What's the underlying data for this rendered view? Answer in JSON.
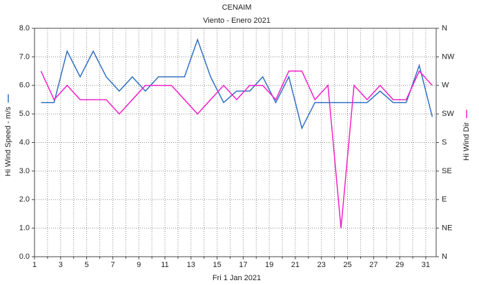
{
  "chart_data": {
    "type": "line",
    "title": "CENAIM",
    "subtitle": "Viento - Enero 2021",
    "xlabel": "Fri 1 Jan 2021",
    "x": [
      1.5,
      2.5,
      3.5,
      4.5,
      5.5,
      6.5,
      7.5,
      8.5,
      9.5,
      10.5,
      11.5,
      12.5,
      13.5,
      14.5,
      15.5,
      16.5,
      17.5,
      18.5,
      19.5,
      20.5,
      21.5,
      22.5,
      23.5,
      24.5,
      25.5,
      26.5,
      27.5,
      28.5,
      29.5,
      30.5,
      31.5
    ],
    "xlim": [
      1,
      31.8
    ],
    "xticks": [
      1,
      3,
      5,
      7,
      9,
      11,
      13,
      15,
      17,
      19,
      21,
      23,
      25,
      27,
      29,
      31
    ],
    "xminor_ticks": [
      2,
      4,
      6,
      8,
      10,
      12,
      14,
      16,
      18,
      20,
      22,
      24,
      26,
      28,
      30
    ],
    "ylim": [
      0,
      8
    ],
    "yticks": [
      {
        "value": 0,
        "label": "0.0"
      },
      {
        "value": 1,
        "label": "1.0"
      },
      {
        "value": 2,
        "label": "2.0"
      },
      {
        "value": 3,
        "label": "3.0"
      },
      {
        "value": 4,
        "label": "4.0"
      },
      {
        "value": 5,
        "label": "5.0"
      },
      {
        "value": 6,
        "label": "6.0"
      },
      {
        "value": 7,
        "label": "7.0"
      },
      {
        "value": 8,
        "label": "8.0"
      }
    ],
    "y2lim": [
      0,
      360
    ],
    "y2ticks": [
      {
        "value": 0,
        "label": "N"
      },
      {
        "value": 45,
        "label": "NE"
      },
      {
        "value": 90,
        "label": "E"
      },
      {
        "value": 135,
        "label": "SE"
      },
      {
        "value": 180,
        "label": "S"
      },
      {
        "value": 225,
        "label": "SW"
      },
      {
        "value": 270,
        "label": "W"
      },
      {
        "value": 315,
        "label": "NW"
      },
      {
        "value": 360,
        "label": "N"
      }
    ],
    "grid": true,
    "series": [
      {
        "name": "Hi Wind Speed - m/s",
        "color": "#2e6fc2",
        "axis": "y",
        "values": [
          5.4,
          5.4,
          7.2,
          6.3,
          7.2,
          6.3,
          5.8,
          6.3,
          5.8,
          6.3,
          6.3,
          6.3,
          7.6,
          6.3,
          5.4,
          5.8,
          5.8,
          6.3,
          5.4,
          6.3,
          4.5,
          5.4,
          5.4,
          5.4,
          5.4,
          5.4,
          5.8,
          5.4,
          5.4,
          6.7,
          4.9
        ]
      },
      {
        "name": "Hi Wind Dir",
        "color": "#f21fc9",
        "axis": "y2",
        "values": [
          292.5,
          247.5,
          270,
          247.5,
          247.5,
          247.5,
          225,
          247.5,
          270,
          270,
          270,
          247.5,
          225,
          247.5,
          270,
          247.5,
          270,
          270,
          247.5,
          292.5,
          292.5,
          247.5,
          270,
          45,
          270,
          247.5,
          270,
          247.5,
          247.5,
          292.5,
          270
        ]
      }
    ]
  }
}
